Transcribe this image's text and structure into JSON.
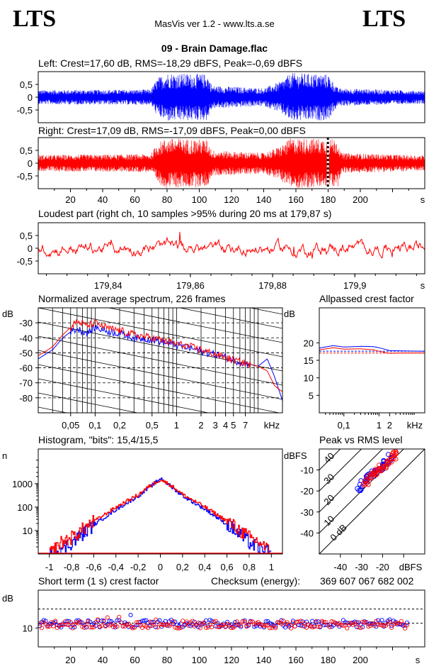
{
  "header": {
    "logo_left": "LTS",
    "logo_right": "LTS",
    "app": "MasVis ver 1.2 - www.lts.a.se",
    "file": "09 - Brain Damage.flac"
  },
  "colors": {
    "left": "#0000ff",
    "right": "#ff0000"
  },
  "chart_data": [
    {
      "type": "line",
      "title": "Left: Crest=17,60 dB, RMS=-18,29 dBFS, Peak=-0,69 dBFS",
      "series": [
        {
          "color": "#0000ff"
        }
      ],
      "y_ticks": [
        "0,5",
        "0",
        "-0,5"
      ],
      "ylim": [
        -1,
        1
      ],
      "xlim": [
        0,
        240
      ],
      "envelope": [
        [
          0,
          0.28
        ],
        [
          70,
          0.3
        ],
        [
          74,
          0.75
        ],
        [
          80,
          0.95
        ],
        [
          105,
          0.9
        ],
        [
          108,
          0.45
        ],
        [
          140,
          0.35
        ],
        [
          150,
          0.6
        ],
        [
          157,
          0.95
        ],
        [
          180,
          0.9
        ],
        [
          186,
          0.35
        ],
        [
          240,
          0.25
        ]
      ]
    },
    {
      "type": "line",
      "title": "Right: Crest=17,09 dB, RMS=-17,09 dBFS, Peak=0,00 dBFS",
      "series": [
        {
          "color": "#ff0000"
        }
      ],
      "y_ticks": [
        "0,5",
        "0",
        "-0,5"
      ],
      "x_ticks": [
        "20",
        "40",
        "60",
        "80",
        "100",
        "120",
        "140",
        "160",
        "180",
        "200"
      ],
      "x_unit": "s",
      "ylim": [
        -1,
        1
      ],
      "xlim": [
        0,
        240
      ],
      "marker_x": 179.87,
      "envelope": [
        [
          0,
          0.32
        ],
        [
          70,
          0.35
        ],
        [
          74,
          0.8
        ],
        [
          80,
          0.98
        ],
        [
          105,
          0.92
        ],
        [
          108,
          0.5
        ],
        [
          140,
          0.4
        ],
        [
          150,
          0.65
        ],
        [
          157,
          0.98
        ],
        [
          186,
          0.95
        ],
        [
          188,
          0.4
        ],
        [
          240,
          0.3
        ]
      ]
    },
    {
      "type": "line",
      "title": "Loudest part (right ch, 10 samples >95% during 20 ms at 179,87 s)",
      "series": [
        {
          "color": "#ff0000"
        }
      ],
      "y_ticks": [
        "0,5",
        "0",
        "-0,5"
      ],
      "x_ticks": [
        "179,84",
        "179,86",
        "179,88",
        "179,9"
      ],
      "x_unit": "s",
      "xlim": [
        179.823,
        179.917
      ],
      "ylim": [
        -1,
        1
      ]
    },
    {
      "type": "line",
      "title": "Normalized average spectrum, 226 frames",
      "y_unit": "dB",
      "y_ticks": [
        "-30",
        "-40",
        "-50",
        "-60",
        "-70",
        "-80"
      ],
      "x_ticks": [
        "0,05",
        "0,1",
        "0,2",
        "0,5",
        "1",
        "2",
        "3",
        "4",
        "5",
        "7"
      ],
      "x_unit": "kHz",
      "xscale": "log",
      "xlim": [
        0.02,
        20
      ],
      "ylim": [
        -90,
        -20
      ],
      "series": [
        {
          "color": "#0000ff",
          "x": [
            0.02,
            0.03,
            0.04,
            0.05,
            0.06,
            0.08,
            0.1,
            0.15,
            0.2,
            0.3,
            0.5,
            0.7,
            1,
            1.5,
            2,
            3,
            4,
            5,
            7,
            10,
            13,
            16,
            20
          ],
          "y": [
            -54,
            -48,
            -40,
            -36,
            -34,
            -37,
            -33,
            -36,
            -37,
            -40,
            -41,
            -43,
            -45,
            -47,
            -49,
            -51,
            -53,
            -55,
            -57,
            -59,
            -54,
            -66,
            -82
          ]
        },
        {
          "color": "#ff0000",
          "x": [
            0.02,
            0.03,
            0.04,
            0.05,
            0.06,
            0.08,
            0.1,
            0.15,
            0.2,
            0.3,
            0.5,
            0.7,
            1,
            1.5,
            2,
            3,
            4,
            5,
            7,
            10,
            13,
            16,
            20
          ],
          "y": [
            -52,
            -46,
            -38,
            -33,
            -29,
            -32,
            -30,
            -34,
            -35,
            -38,
            -40,
            -42,
            -44,
            -46,
            -48,
            -51,
            -53,
            -55,
            -57,
            -59,
            -62,
            -72,
            -76
          ]
        }
      ]
    },
    {
      "type": "line",
      "title": "Allpassed crest factor",
      "y_unit": "dB",
      "y_ticks": [
        "20",
        "15",
        "10",
        "5"
      ],
      "x_ticks": [
        "0,1",
        "1",
        "2"
      ],
      "x_unit": "kHz",
      "xscale": "log",
      "xlim": [
        0.02,
        20
      ],
      "ylim": [
        0,
        30
      ],
      "reference_levels": [
        17.6,
        17.09
      ],
      "series": [
        {
          "color": "#0000ff",
          "x": [
            0.02,
            0.05,
            0.1,
            0.3,
            0.7,
            1,
            2,
            5,
            20
          ],
          "y": [
            18.5,
            19.2,
            18.8,
            19.0,
            18.9,
            18.6,
            17.8,
            17.7,
            17.6
          ]
        },
        {
          "color": "#ff0000",
          "x": [
            0.02,
            0.05,
            0.1,
            0.3,
            0.7,
            1,
            2,
            5,
            20
          ],
          "y": [
            18.0,
            18.6,
            18.2,
            18.3,
            18.0,
            17.6,
            17.0,
            17.1,
            17.1
          ]
        }
      ]
    },
    {
      "type": "line",
      "title": "Histogram, \"bits\": 15,4/15,5",
      "y_unit": "n",
      "y_ticks": [
        "1000",
        "100",
        "10"
      ],
      "x_ticks": [
        "-1",
        "-0,8",
        "-0,6",
        "-0,4",
        "-0,2",
        "0",
        "0,2",
        "0,4",
        "0,6",
        "0,8",
        "1"
      ],
      "yscale": "log",
      "xlim": [
        -1.1,
        1.1
      ],
      "ylim": [
        1,
        30000
      ],
      "series": [
        {
          "color": "#0000ff",
          "x": [
            -1,
            -0.86,
            -0.8,
            -0.6,
            -0.4,
            -0.2,
            -0.1,
            0,
            0.1,
            0.2,
            0.4,
            0.6,
            0.8,
            0.86,
            1
          ],
          "y": [
            1,
            2,
            3,
            18,
            80,
            300,
            700,
            1700,
            700,
            300,
            80,
            18,
            3,
            2,
            1
          ]
        },
        {
          "color": "#ff0000",
          "x": [
            -1,
            -0.9,
            -0.8,
            -0.6,
            -0.4,
            -0.2,
            -0.1,
            0,
            0.1,
            0.2,
            0.4,
            0.6,
            0.8,
            0.9,
            1
          ],
          "y": [
            1,
            3,
            5,
            25,
            100,
            340,
            800,
            1500,
            800,
            340,
            100,
            25,
            5,
            3,
            1
          ]
        }
      ]
    },
    {
      "type": "scatter",
      "title": "Peak vs RMS level",
      "y_unit": "dBFS",
      "x_unit": "dBFS",
      "y_ticks": [
        "-10",
        "-20",
        "-30",
        "-40"
      ],
      "x_ticks": [
        "-40",
        "-30",
        "-20"
      ],
      "xlim": [
        -50,
        0
      ],
      "ylim": [
        -50,
        0
      ],
      "diagonal_labels": [
        "40",
        "30",
        "20",
        "10",
        "0 dB"
      ],
      "series": [
        {
          "color": "#0000ff",
          "x": [
            -31,
            -30,
            -29,
            -28,
            -27,
            -26,
            -25,
            -24,
            -23,
            -22,
            -21,
            -20,
            -19,
            -18,
            -17,
            -16
          ],
          "y": [
            -18,
            -19,
            -16,
            -15,
            -14,
            -13,
            -12,
            -11,
            -11,
            -10,
            -9,
            -8,
            -7,
            -6,
            -5,
            -4
          ]
        },
        {
          "color": "#ff0000",
          "x": [
            -28,
            -27,
            -26,
            -25,
            -24,
            -23,
            -22,
            -21,
            -20,
            -19,
            -18,
            -17,
            -16,
            -15,
            -14,
            -13
          ],
          "y": [
            -16,
            -15,
            -14,
            -13,
            -12,
            -11,
            -10,
            -9,
            -9,
            -8,
            -7,
            -6,
            -5,
            -4,
            -3,
            -1
          ]
        }
      ]
    },
    {
      "type": "scatter",
      "title": "Short term (1 s) crest factor",
      "checksum_label": "Checksum (energy):",
      "checksum_value": "369 607 067 682 002",
      "y_unit": "dB",
      "y_ticks": [
        "10"
      ],
      "x_ticks": [
        "20",
        "40",
        "60",
        "80",
        "100",
        "120",
        "140",
        "160",
        "180",
        "200"
      ],
      "x_unit": "s",
      "xlim": [
        0,
        240
      ],
      "ylim": [
        0,
        30
      ],
      "reference_levels": [
        20,
        12.5
      ],
      "series": [
        {
          "color": "#0000ff",
          "mean": 12.3
        },
        {
          "color": "#ff0000",
          "mean": 11.8
        }
      ]
    }
  ]
}
